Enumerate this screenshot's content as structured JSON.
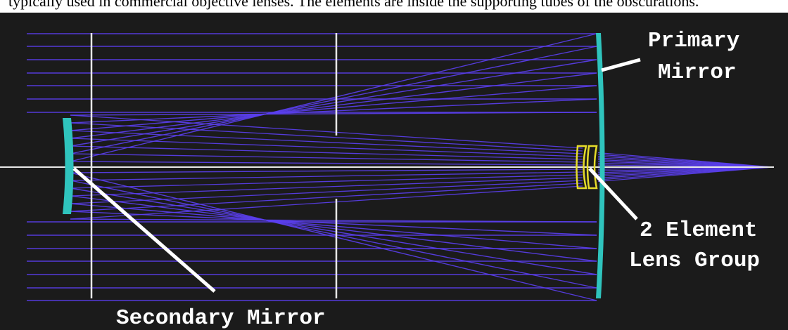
{
  "top_caption": "typically used in commercial objective lenses. The elements are inside the supporting tubes of the obscurations.",
  "labels": {
    "primary_mirror": [
      "Primary",
      "Mirror"
    ],
    "lens_group": [
      "2 Element",
      "Lens Group"
    ],
    "secondary_mirror": "Secondary Mirror"
  },
  "colors": {
    "background": "#1b1b1b",
    "rays": "#5b3ff0",
    "mirror": "#2fc4bd",
    "lens": "#e6dc2a",
    "axis": "#e8e8e8",
    "leader": "#ffffff"
  }
}
